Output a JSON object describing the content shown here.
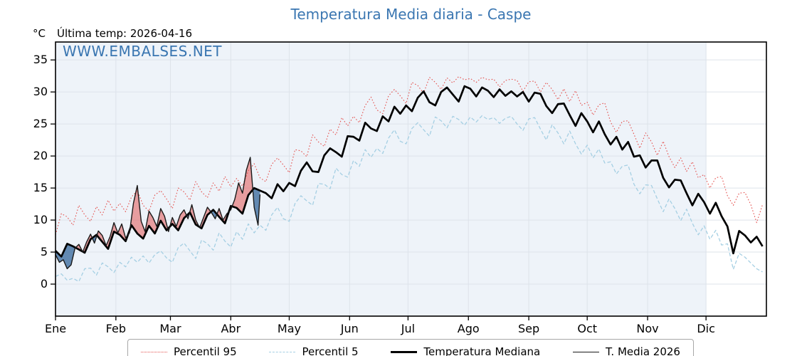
{
  "title": "Temperatura Media diaria - Caspe",
  "watermark": "WWW.EMBALSES.NET",
  "header": {
    "unit_label": "°C",
    "last_temp_note": "Última temp: 2026-04-16"
  },
  "legend": {
    "items": [
      {
        "label": "Percentil 95",
        "style": "dotted-red"
      },
      {
        "label": "Percentil 5",
        "style": "dashed-blue"
      },
      {
        "label": "Temperatura Mediana",
        "style": "thick-black"
      },
      {
        "label": "T. Media 2026",
        "style": "thin-black"
      }
    ]
  },
  "colors": {
    "title_blue": "#3a76b1",
    "p95_red": "#e4514e",
    "p5_blue": "#a5cfe3",
    "median_black": "#000000",
    "t2026_black": "#1a1a1a",
    "fill_above": "rgba(226,86,86,0.55)",
    "fill_below": "rgba(62,110,160,0.80)",
    "plot_span_bg": "#eef3f9",
    "grid": "#dde3ea",
    "spine": "#000000"
  },
  "chart_data": {
    "type": "line",
    "title": "Temperatura Media diaria - Caspe",
    "ylabel": "°C",
    "annotation": "Última temp: 2026-04-16",
    "x_unit": "day_of_year",
    "xlim": [
      1,
      366
    ],
    "ylim": [
      -5.0,
      37.8
    ],
    "y_ticks": [
      0,
      5,
      10,
      15,
      20,
      25,
      30,
      35
    ],
    "month_tick_labels": [
      "Ene",
      "Feb",
      "Mar",
      "Abr",
      "May",
      "Jun",
      "Jul",
      "Ago",
      "Sep",
      "Oct",
      "Nov",
      "Dic"
    ],
    "month_start_days": [
      1,
      32,
      60,
      91,
      121,
      152,
      182,
      213,
      244,
      274,
      305,
      335
    ],
    "shaded_span_days": [
      1,
      335
    ],
    "grid": true,
    "legend_position": "bottom-center",
    "series": [
      {
        "name": "Percentil 95",
        "color": "#e4514e",
        "dash": "dotted",
        "width": 1.1,
        "x": [
          1,
          4,
          7,
          10,
          13,
          16,
          19,
          22,
          25,
          28,
          31,
          34,
          37,
          40,
          43,
          46,
          49,
          52,
          55,
          58,
          61,
          64,
          67,
          70,
          73,
          76,
          79,
          82,
          85,
          88,
          91,
          94,
          97,
          100,
          103,
          106,
          109,
          112,
          115,
          118,
          121,
          124,
          127,
          130,
          133,
          136,
          139,
          142,
          145,
          148,
          151,
          154,
          157,
          160,
          163,
          166,
          169,
          172,
          175,
          178,
          181,
          184,
          187,
          190,
          193,
          196,
          199,
          202,
          205,
          208,
          211,
          214,
          217,
          220,
          223,
          226,
          229,
          232,
          235,
          238,
          241,
          244,
          247,
          250,
          253,
          256,
          259,
          262,
          265,
          268,
          271,
          274,
          277,
          280,
          283,
          286,
          289,
          292,
          295,
          298,
          301,
          304,
          307,
          310,
          313,
          316,
          319,
          322,
          325,
          328,
          331,
          334,
          337,
          340,
          343,
          346,
          349,
          352,
          355,
          358,
          361,
          364
        ],
        "values": [
          7.7,
          11.0,
          10.5,
          9.2,
          12.3,
          10.8,
          9.8,
          12.1,
          10.8,
          13.1,
          11.4,
          12.6,
          11.3,
          13.6,
          14.6,
          12.3,
          11.4,
          13.9,
          14.6,
          13.3,
          11.8,
          15.0,
          14.4,
          13.1,
          16.0,
          14.4,
          13.5,
          15.8,
          14.5,
          16.8,
          15.2,
          16.5,
          15.3,
          17.7,
          18.8,
          16.6,
          16.0,
          18.7,
          19.7,
          18.6,
          17.4,
          21.0,
          20.8,
          19.9,
          23.3,
          22.2,
          21.5,
          24.2,
          23.3,
          26.0,
          24.7,
          26.2,
          25.2,
          27.9,
          29.2,
          27.2,
          26.6,
          29.4,
          30.4,
          29.4,
          28.2,
          31.5,
          31.0,
          29.8,
          32.3,
          31.5,
          30.4,
          32.2,
          31.4,
          32.4,
          31.9,
          32.1,
          31.5,
          32.3,
          31.9,
          32.0,
          30.8,
          31.8,
          32.0,
          31.8,
          30.1,
          31.6,
          31.7,
          30.0,
          31.5,
          30.4,
          28.8,
          30.5,
          28.5,
          30.2,
          27.9,
          28.4,
          26.4,
          28.0,
          28.3,
          25.3,
          23.7,
          25.4,
          25.5,
          23.4,
          21.2,
          23.6,
          22.2,
          20.1,
          22.3,
          19.9,
          18.2,
          19.7,
          17.6,
          19.1,
          16.6,
          17.1,
          15.0,
          16.6,
          16.8,
          13.8,
          12.3,
          14.2,
          14.3,
          12.4,
          9.6,
          12.4
        ]
      },
      {
        "name": "Percentil 5",
        "color": "#a5cfe3",
        "dash": "dashed",
        "width": 1.3,
        "x": [
          1,
          4,
          7,
          10,
          13,
          16,
          19,
          22,
          25,
          28,
          31,
          34,
          37,
          40,
          43,
          46,
          49,
          52,
          55,
          58,
          61,
          64,
          67,
          70,
          73,
          76,
          79,
          82,
          85,
          88,
          91,
          94,
          97,
          100,
          103,
          106,
          109,
          112,
          115,
          118,
          121,
          124,
          127,
          130,
          133,
          136,
          139,
          142,
          145,
          148,
          151,
          154,
          157,
          160,
          163,
          166,
          169,
          172,
          175,
          178,
          181,
          184,
          187,
          190,
          193,
          196,
          199,
          202,
          205,
          208,
          211,
          214,
          217,
          220,
          223,
          226,
          229,
          232,
          235,
          238,
          241,
          244,
          247,
          250,
          253,
          256,
          259,
          262,
          265,
          268,
          271,
          274,
          277,
          280,
          283,
          286,
          289,
          292,
          295,
          298,
          301,
          304,
          307,
          310,
          313,
          316,
          319,
          322,
          325,
          328,
          331,
          334,
          337,
          340,
          343,
          346,
          349,
          352,
          355,
          358,
          361,
          364
        ],
        "values": [
          1.2,
          1.6,
          0.6,
          0.9,
          0.4,
          2.4,
          2.5,
          1.4,
          3.3,
          2.7,
          1.8,
          3.4,
          2.7,
          4.2,
          3.4,
          4.4,
          3.3,
          4.6,
          5.2,
          4.1,
          3.4,
          5.7,
          6.4,
          5.2,
          4.0,
          6.9,
          6.3,
          5.3,
          8.0,
          6.7,
          5.8,
          8.2,
          7.0,
          9.4,
          8.0,
          9.2,
          8.4,
          10.8,
          12.0,
          10.2,
          9.8,
          12.6,
          13.8,
          13.0,
          12.3,
          15.7,
          15.6,
          14.9,
          18.1,
          17.1,
          16.7,
          19.3,
          18.4,
          21.0,
          19.8,
          21.2,
          20.4,
          22.8,
          24.1,
          22.3,
          21.9,
          24.3,
          25.2,
          24.1,
          23.1,
          26.1,
          25.5,
          24.4,
          26.2,
          25.7,
          24.8,
          26.1,
          25.3,
          26.3,
          25.7,
          26.0,
          25.1,
          25.9,
          26.2,
          25.0,
          24.0,
          25.8,
          26.0,
          24.2,
          22.5,
          24.9,
          23.6,
          21.9,
          23.9,
          21.9,
          20.3,
          21.7,
          19.7,
          21.1,
          18.9,
          19.1,
          17.2,
          18.4,
          18.6,
          15.6,
          14.1,
          15.5,
          15.4,
          13.3,
          11.3,
          13.3,
          11.8,
          9.9,
          11.7,
          9.5,
          7.7,
          9.1,
          7.0,
          8.4,
          6.1,
          6.3,
          2.3,
          4.8,
          4.2,
          3.3,
          2.4,
          1.9
        ]
      },
      {
        "name": "Temperatura Mediana",
        "color": "#000000",
        "dash": "solid",
        "width": 2.7,
        "x": [
          1,
          4,
          7,
          10,
          13,
          16,
          19,
          22,
          25,
          28,
          31,
          34,
          37,
          40,
          43,
          46,
          49,
          52,
          55,
          58,
          61,
          64,
          67,
          70,
          73,
          76,
          79,
          82,
          85,
          88,
          91,
          94,
          97,
          100,
          103,
          106,
          109,
          112,
          115,
          118,
          121,
          124,
          127,
          130,
          133,
          136,
          139,
          142,
          145,
          148,
          151,
          154,
          157,
          160,
          163,
          166,
          169,
          172,
          175,
          178,
          181,
          184,
          187,
          190,
          193,
          196,
          199,
          202,
          205,
          208,
          211,
          214,
          217,
          220,
          223,
          226,
          229,
          232,
          235,
          238,
          241,
          244,
          247,
          250,
          253,
          256,
          259,
          262,
          265,
          268,
          271,
          274,
          277,
          280,
          283,
          286,
          289,
          292,
          295,
          298,
          301,
          304,
          307,
          310,
          313,
          316,
          319,
          322,
          325,
          328,
          331,
          334,
          337,
          340,
          343,
          346,
          349,
          352,
          355,
          358,
          361,
          364
        ],
        "values": [
          5.2,
          4.3,
          6.3,
          5.9,
          5.4,
          4.9,
          7.0,
          7.7,
          6.6,
          5.5,
          8.2,
          7.7,
          6.7,
          9.2,
          7.9,
          7.1,
          9.1,
          7.9,
          9.9,
          8.4,
          9.4,
          8.4,
          10.3,
          11.2,
          9.3,
          8.7,
          10.8,
          11.6,
          10.5,
          9.5,
          12.2,
          11.9,
          11.0,
          13.9,
          15.0,
          14.6,
          14.2,
          13.4,
          15.6,
          14.5,
          15.8,
          15.3,
          17.7,
          19.0,
          17.6,
          17.5,
          20.1,
          21.2,
          20.6,
          19.9,
          23.1,
          23.0,
          22.4,
          25.2,
          24.3,
          23.9,
          26.2,
          25.4,
          27.7,
          26.6,
          27.9,
          27.0,
          29.1,
          30.1,
          28.4,
          27.9,
          30.0,
          30.7,
          29.6,
          28.5,
          30.9,
          30.5,
          29.3,
          30.7,
          30.2,
          29.2,
          30.4,
          29.4,
          30.1,
          29.3,
          30.0,
          28.5,
          29.9,
          29.7,
          27.8,
          26.7,
          28.1,
          28.2,
          26.4,
          24.7,
          26.7,
          25.4,
          23.7,
          25.4,
          23.4,
          21.8,
          23.0,
          21.0,
          22.2,
          19.9,
          20.1,
          18.2,
          19.3,
          19.3,
          16.6,
          15.1,
          16.3,
          16.2,
          14.2,
          12.3,
          14.1,
          12.8,
          11.0,
          12.7,
          10.6,
          9.0,
          4.8,
          8.3,
          7.6,
          6.5,
          7.4,
          5.9
        ]
      },
      {
        "name": "T. Media 2026",
        "color": "#1a1a1a",
        "dash": "solid",
        "width": 1.4,
        "x": [
          1,
          3,
          5,
          7,
          9,
          11,
          13,
          15,
          17,
          19,
          21,
          23,
          25,
          27,
          29,
          31,
          33,
          35,
          37,
          39,
          41,
          43,
          45,
          47,
          49,
          51,
          53,
          55,
          57,
          59,
          61,
          63,
          65,
          67,
          69,
          71,
          73,
          75,
          77,
          79,
          81,
          83,
          85,
          87,
          89,
          91,
          93,
          95,
          97,
          99,
          101,
          103,
          105,
          106
        ],
        "values": [
          4.6,
          3.4,
          3.8,
          2.4,
          3.0,
          5.6,
          6.2,
          5.0,
          6.6,
          7.8,
          6.4,
          8.3,
          7.6,
          6.0,
          7.4,
          9.6,
          8.0,
          9.4,
          7.2,
          8.0,
          12.6,
          15.4,
          9.8,
          8.2,
          11.4,
          10.4,
          9.0,
          11.8,
          10.6,
          8.2,
          10.4,
          9.0,
          10.8,
          11.6,
          10.2,
          12.4,
          10.0,
          8.8,
          10.4,
          12.0,
          11.2,
          10.2,
          11.8,
          10.0,
          11.0,
          11.6,
          13.2,
          15.8,
          14.2,
          17.8,
          19.8,
          12.0,
          9.2,
          14.0
        ]
      }
    ],
    "fills": {
      "between": [
        "T. Media 2026",
        "Temperatura Mediana"
      ],
      "above_color": "rgba(226,86,86,0.55)",
      "below_color": "rgba(62,110,160,0.80)"
    }
  }
}
